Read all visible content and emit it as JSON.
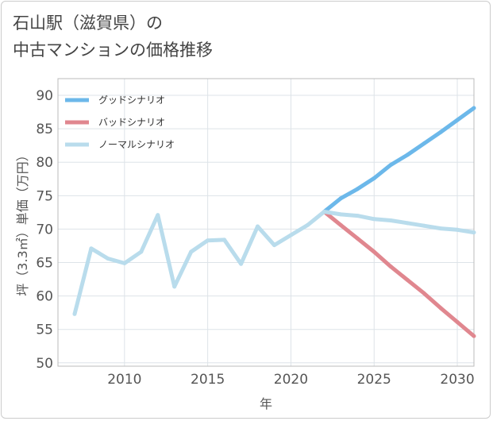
{
  "title": {
    "line1": "石山駅（滋賀県）の",
    "line2": "中古マンションの価格推移"
  },
  "chart_data": {
    "type": "line",
    "title": "石山駅（滋賀県）の中古マンションの価格推移",
    "xlabel": "年",
    "ylabel": "坪（3.3㎡）単価（万円）",
    "xlim": [
      2006,
      2031
    ],
    "ylim": [
      49.5,
      92.5
    ],
    "xticks": [
      2010,
      2015,
      2020,
      2025,
      2030
    ],
    "yticks": [
      50,
      55,
      60,
      65,
      70,
      75,
      80,
      85,
      90
    ],
    "grid": true,
    "legend_position": "top-left",
    "series": [
      {
        "name": "グッドシナリオ",
        "color": "#6cb8ea",
        "x": [
          2022,
          2023,
          2024,
          2025,
          2026,
          2027,
          2028,
          2029,
          2030,
          2031
        ],
        "y": [
          72.6,
          74.6,
          76.0,
          77.6,
          79.6,
          81.1,
          82.8,
          84.5,
          86.3,
          88.1
        ]
      },
      {
        "name": "バッドシナリオ",
        "color": "#e0878f",
        "x": [
          2022,
          2023,
          2024,
          2025,
          2026,
          2027,
          2028,
          2029,
          2030,
          2031
        ],
        "y": [
          72.6,
          70.6,
          68.6,
          66.6,
          64.4,
          62.4,
          60.4,
          58.2,
          56.1,
          54.0
        ]
      },
      {
        "name": "ノーマルシナリオ",
        "color": "#b9dcec",
        "x": [
          2007,
          2008,
          2009,
          2010,
          2011,
          2012,
          2013,
          2014,
          2015,
          2016,
          2017,
          2018,
          2019,
          2020,
          2021,
          2022,
          2023,
          2024,
          2025,
          2026,
          2027,
          2028,
          2029,
          2030,
          2031
        ],
        "y": [
          57.3,
          67.1,
          65.6,
          64.9,
          66.6,
          72.1,
          61.4,
          66.6,
          68.3,
          68.4,
          64.8,
          70.4,
          67.6,
          69.1,
          70.6,
          72.6,
          72.2,
          72.0,
          71.5,
          71.3,
          70.9,
          70.5,
          70.1,
          69.9,
          69.5
        ]
      }
    ]
  }
}
